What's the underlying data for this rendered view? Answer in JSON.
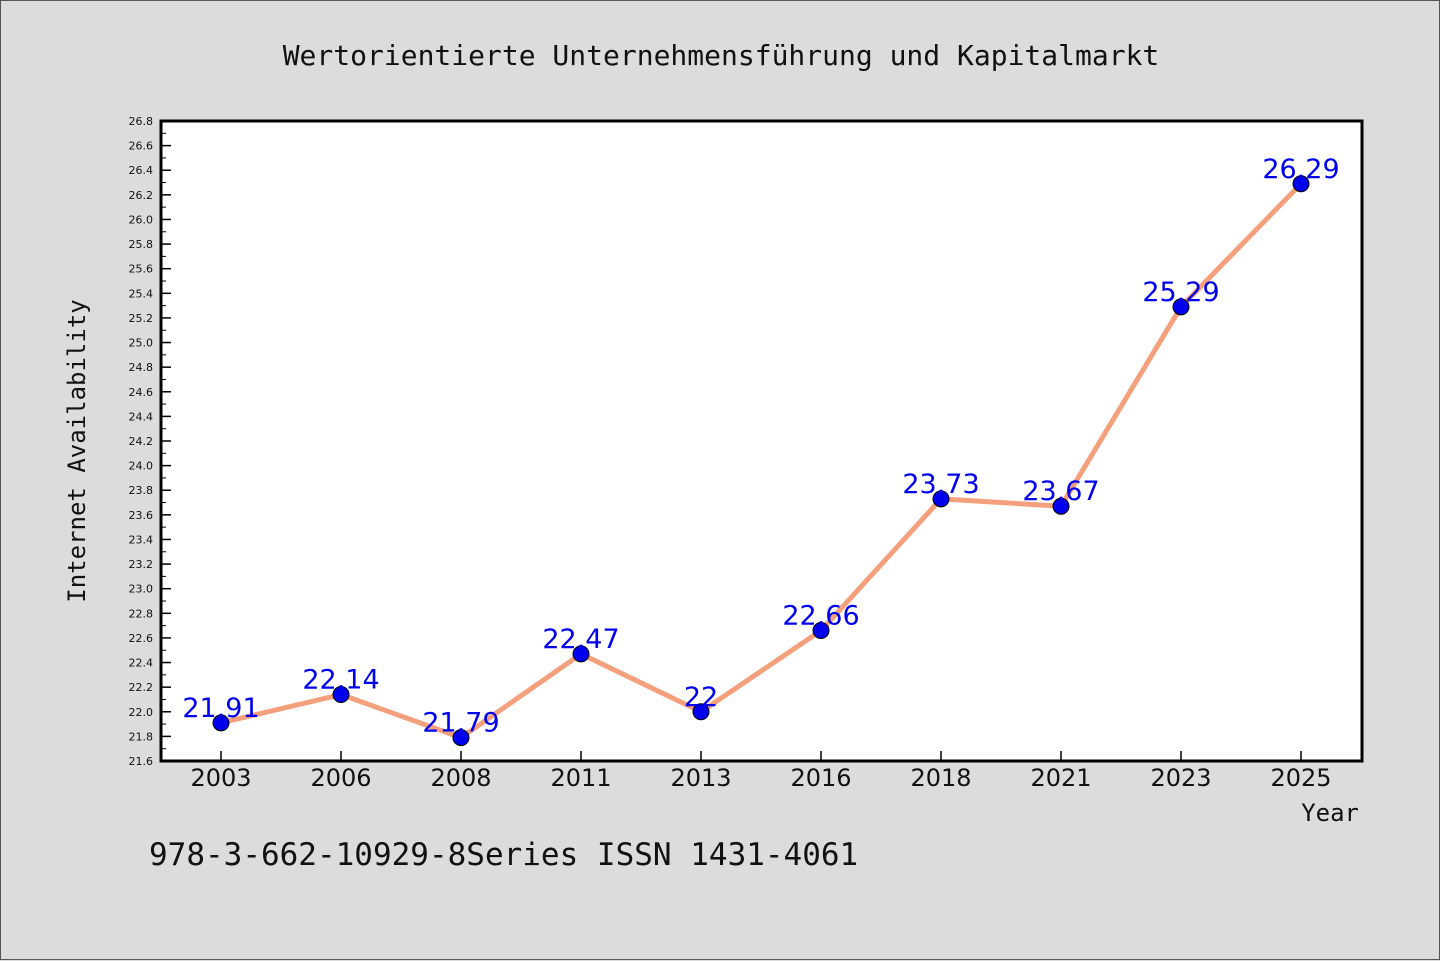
{
  "chart_data": {
    "type": "line",
    "title": "Wertorientierte Unternehmensführung und Kapitalmarkt",
    "xlabel": "Year",
    "ylabel": "Internet Availability",
    "categories": [
      "2003",
      "2006",
      "2008",
      "2011",
      "2013",
      "2016",
      "2018",
      "2021",
      "2023",
      "2025"
    ],
    "series": [
      {
        "values": [
          21.91,
          22.14,
          21.79,
          22.47,
          22,
          22.66,
          23.73,
          23.67,
          25.29,
          26.29
        ],
        "data_labels": [
          "21.91",
          "22.14",
          "21.79",
          "22.47",
          "22",
          "22.66",
          "23.73",
          "23.67",
          "25.29",
          "26.29"
        ]
      }
    ],
    "ylim": [
      21.6,
      26.8
    ],
    "yticks": [
      "21.6",
      "21.8",
      "22.0",
      "22.2",
      "22.4",
      "22.6",
      "22.8",
      "23.0",
      "23.2",
      "23.4",
      "23.6",
      "23.8",
      "24.0",
      "24.2",
      "24.4",
      "24.6",
      "24.8",
      "25.0",
      "25.2",
      "25.4",
      "25.6",
      "25.8",
      "26.0",
      "26.2",
      "26.4",
      "26.6",
      "26.8"
    ],
    "grid": false,
    "legend": "none",
    "line_color": "#f5a07c",
    "marker_color": "#0000ee",
    "label_color": "#0000ee"
  },
  "footer_text": "978-3-662-10929-8Series ISSN 1431-4061"
}
